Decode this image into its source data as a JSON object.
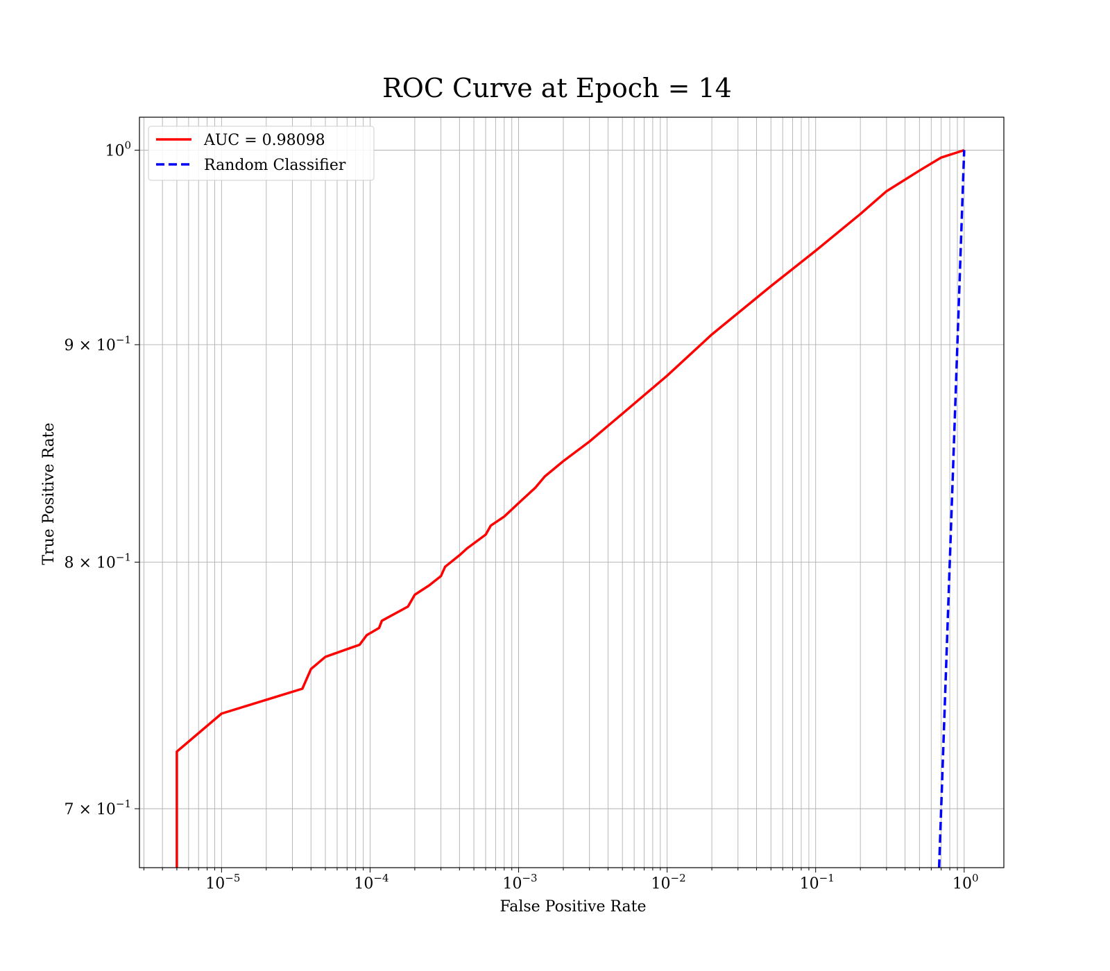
{
  "chart_data": {
    "type": "line",
    "title": "ROC Curve at Epoch = 14",
    "xlabel": "False Positive Rate",
    "ylabel": "True Positive Rate",
    "xscale": "log",
    "yscale": "log",
    "xlim": [
      2.8e-06,
      1.85
    ],
    "ylim": [
      0.678,
      1.018
    ],
    "grid": "on (major and minor)",
    "legend_position": "top-left",
    "x_ticks": [
      {
        "base": "10",
        "exp": "−5",
        "value": 1e-05
      },
      {
        "base": "10",
        "exp": "−4",
        "value": 0.0001
      },
      {
        "base": "10",
        "exp": "−3",
        "value": 0.001
      },
      {
        "base": "10",
        "exp": "−2",
        "value": 0.01
      },
      {
        "base": "10",
        "exp": "−1",
        "value": 0.1
      },
      {
        "base": "10",
        "exp": "0",
        "value": 1
      }
    ],
    "y_ticks": [
      {
        "mant": "",
        "base": "10",
        "exp": "0",
        "value": 1.0
      },
      {
        "mant": "9 × ",
        "base": "10",
        "exp": "−1",
        "value": 0.9
      },
      {
        "mant": "8 × ",
        "base": "10",
        "exp": "−1",
        "value": 0.8
      },
      {
        "mant": "7 × ",
        "base": "10",
        "exp": "−1",
        "value": 0.7
      }
    ],
    "series": [
      {
        "name": "AUC = 0.98098",
        "color": "#ff0000",
        "style": "solid",
        "x": [
          5e-06,
          5e-06,
          5e-06,
          1e-05,
          3.5e-05,
          4e-05,
          5e-05,
          8.5e-05,
          9.5e-05,
          0.000115,
          0.00012,
          0.00018,
          0.0002,
          0.00025,
          0.0003,
          0.00032,
          0.00035,
          0.0004,
          0.00045,
          0.0006,
          0.00065,
          0.0008,
          0.001,
          0.0013,
          0.0015,
          0.002,
          0.003,
          0.005,
          0.01,
          0.02,
          0.05,
          0.1,
          0.2,
          0.3,
          0.5,
          0.7,
          1.0
        ],
        "y": [
          0.678,
          0.69,
          0.722,
          0.737,
          0.747,
          0.755,
          0.76,
          0.765,
          0.769,
          0.772,
          0.775,
          0.781,
          0.786,
          0.79,
          0.794,
          0.798,
          0.8,
          0.803,
          0.806,
          0.812,
          0.816,
          0.82,
          0.826,
          0.833,
          0.838,
          0.845,
          0.854,
          0.867,
          0.885,
          0.905,
          0.929,
          0.947,
          0.966,
          0.978,
          0.989,
          0.996,
          1.0
        ]
      },
      {
        "name": "Random Classifier",
        "color": "#0000ff",
        "style": "dashed",
        "x": [
          0.678,
          1.0
        ],
        "y": [
          0.678,
          1.0
        ]
      }
    ]
  }
}
